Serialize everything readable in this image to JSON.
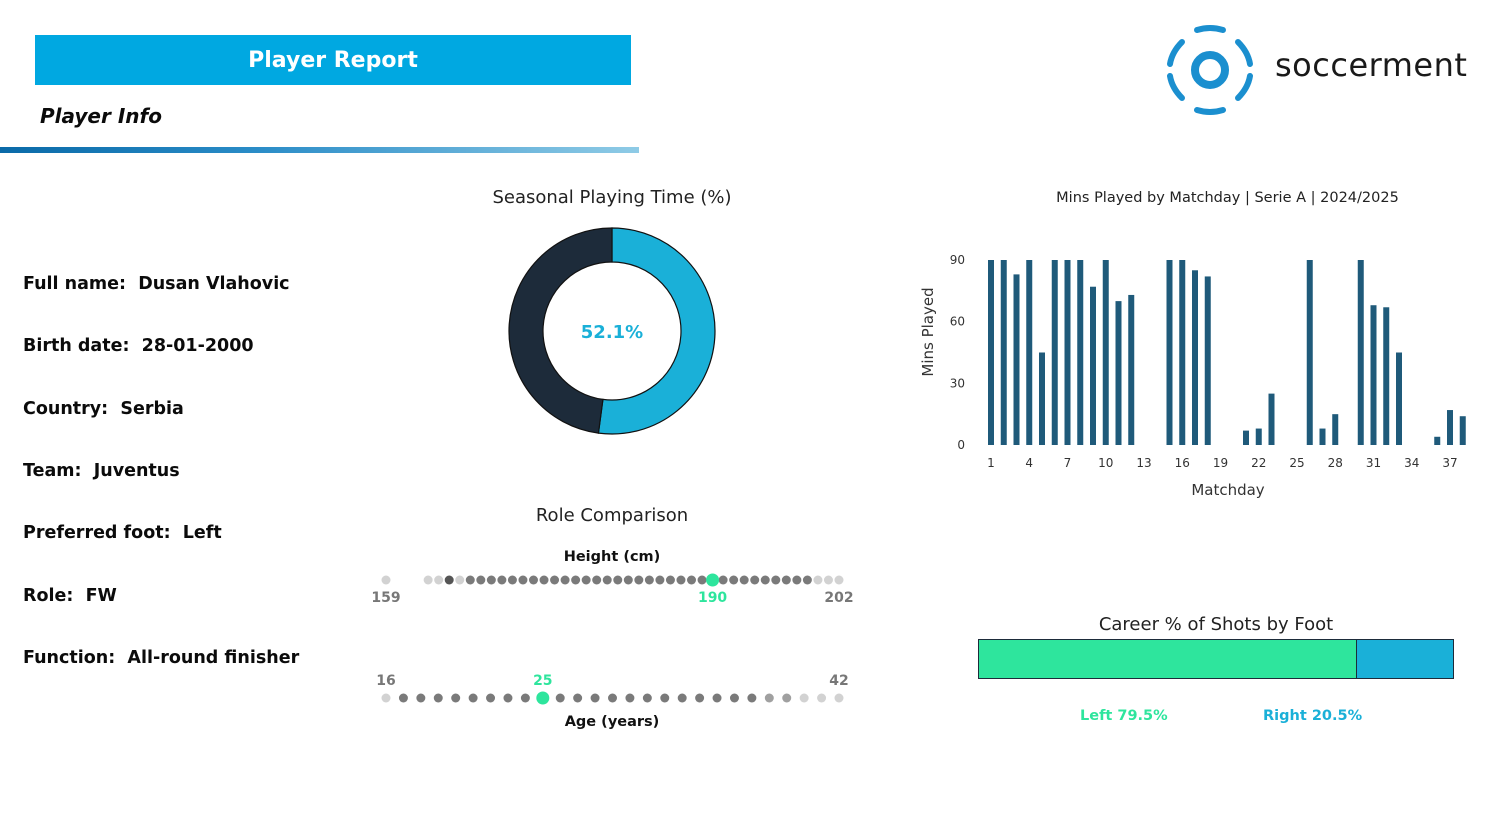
{
  "header": {
    "title": "Player Report",
    "subtitle": "Player Info",
    "brand": "soccerment"
  },
  "player_info": [
    {
      "label": "Full name:",
      "value": "Dusan Vlahovic"
    },
    {
      "label": "Birth date:",
      "value": "28-01-2000"
    },
    {
      "label": "Country:",
      "value": "Serbia"
    },
    {
      "label": "Team:",
      "value": "Juventus"
    },
    {
      "label": "Preferred foot:",
      "value": "Left"
    },
    {
      "label": "Role:",
      "value": "FW"
    },
    {
      "label": "Function:",
      "value": "All-round finisher"
    }
  ],
  "colors": {
    "accent": "#00a8e1",
    "dark": "#1d2b3a",
    "green": "#2ee59d",
    "cyan": "#1ab0d8",
    "bar": "#1f5a7a"
  },
  "chart_data": [
    {
      "type": "pie",
      "title": "Seasonal Playing Time (%)",
      "center_label": "52.1%",
      "slices": [
        {
          "value": 52.1,
          "color": "#1ab0d8"
        },
        {
          "value": 47.9,
          "color": "#1d2b3a"
        }
      ]
    },
    {
      "type": "bar",
      "title": "Mins Played by Matchday | Serie A | 2024/2025",
      "xlabel": "Matchday",
      "ylabel": "Mins Played",
      "ylim": [
        0,
        90
      ],
      "yticks": [
        0,
        30,
        60,
        90
      ],
      "xticks": [
        1,
        4,
        7,
        10,
        13,
        16,
        19,
        22,
        25,
        28,
        31,
        34,
        37
      ],
      "categories": [
        1,
        2,
        3,
        4,
        5,
        6,
        7,
        8,
        9,
        10,
        11,
        12,
        13,
        14,
        15,
        16,
        17,
        18,
        19,
        20,
        21,
        22,
        23,
        24,
        25,
        26,
        27,
        28,
        29,
        30,
        31,
        32,
        33,
        34,
        35,
        36,
        37,
        38
      ],
      "values": [
        90,
        90,
        83,
        90,
        45,
        90,
        90,
        90,
        77,
        90,
        70,
        73,
        0,
        0,
        90,
        90,
        85,
        82,
        0,
        0,
        7,
        8,
        25,
        0,
        0,
        90,
        8,
        15,
        0,
        90,
        68,
        67,
        45,
        0,
        0,
        4,
        17,
        14
      ]
    },
    {
      "type": "scatter",
      "title": "Role Comparison",
      "panels": [
        {
          "label": "Height (cm)",
          "min": 159,
          "max": 202,
          "value": 190,
          "min_label": "159",
          "max_label": "202",
          "value_label": "190"
        },
        {
          "label": "Age (years)",
          "min": 16,
          "max": 42,
          "value": 25,
          "min_label": "16",
          "max_label": "42",
          "value_label": "25"
        }
      ]
    },
    {
      "type": "bar",
      "title": "Career % of Shots by Foot",
      "segments": [
        {
          "label": "Left 79.5%",
          "value": 79.5,
          "color": "#2ee59d"
        },
        {
          "label": "Right 20.5%",
          "value": 20.5,
          "color": "#1ab0d8"
        }
      ]
    }
  ]
}
